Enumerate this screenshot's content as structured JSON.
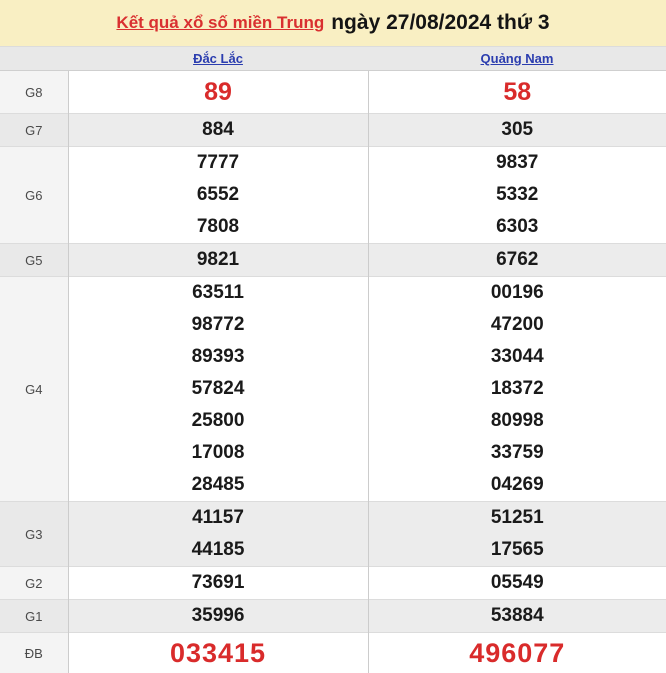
{
  "header": {
    "title_link": "Kết quả xổ số miền Trung",
    "title_date": "ngày 27/08/2024 thứ 3"
  },
  "columns": {
    "dac_lac": "Đắc Lắc",
    "quang_nam": "Quảng Nam"
  },
  "prizes": [
    {
      "label": "G8",
      "dac_lac": [
        "89"
      ],
      "quang_nam": [
        "58"
      ]
    },
    {
      "label": "G7",
      "dac_lac": [
        "884"
      ],
      "quang_nam": [
        "305"
      ]
    },
    {
      "label": "G6",
      "dac_lac": [
        "7777",
        "6552",
        "7808"
      ],
      "quang_nam": [
        "9837",
        "5332",
        "6303"
      ]
    },
    {
      "label": "G5",
      "dac_lac": [
        "9821"
      ],
      "quang_nam": [
        "6762"
      ]
    },
    {
      "label": "G4",
      "dac_lac": [
        "63511",
        "98772",
        "89393",
        "57824",
        "25800",
        "17008",
        "28485"
      ],
      "quang_nam": [
        "00196",
        "47200",
        "33044",
        "18372",
        "80998",
        "33759",
        "04269"
      ]
    },
    {
      "label": "G3",
      "dac_lac": [
        "41157",
        "44185"
      ],
      "quang_nam": [
        "51251",
        "17565"
      ]
    },
    {
      "label": "G2",
      "dac_lac": [
        "73691"
      ],
      "quang_nam": [
        "05549"
      ]
    },
    {
      "label": "G1",
      "dac_lac": [
        "35996"
      ],
      "quang_nam": [
        "53884"
      ]
    },
    {
      "label": "ĐB",
      "dac_lac": [
        "033415"
      ],
      "quang_nam": [
        "496077"
      ]
    }
  ],
  "colors": {
    "banner_bg": "#f9efc3",
    "title_red": "#d93030",
    "highlight_red": "#d92b2b",
    "link_blue": "#2b3daf",
    "stripe_gray": "#ececec",
    "header_gray": "#e8e8e8"
  }
}
